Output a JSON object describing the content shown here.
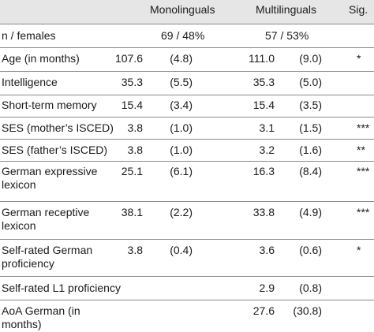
{
  "header": {
    "col_mono": "Monolinguals",
    "col_multi": "Multilinguals",
    "col_sig": "Sig."
  },
  "summary_row": {
    "label": "n / females",
    "mono": "69  /  48%",
    "multi": "57  /  53%"
  },
  "rows": [
    {
      "label": "Age (in months)",
      "mono_mean": "107.6",
      "mono_sd": "(4.8)",
      "multi_mean": "111.0",
      "multi_sd": "(9.0)",
      "sig": "*"
    },
    {
      "label": "Intelligence",
      "mono_mean": "35.3",
      "mono_sd": "(5.5)",
      "multi_mean": "35.3",
      "multi_sd": "(5.0)",
      "sig": ""
    },
    {
      "label": "Short-term memory",
      "mono_mean": "15.4",
      "mono_sd": "(3.4)",
      "multi_mean": "15.4",
      "multi_sd": "(3.5)",
      "sig": ""
    },
    {
      "label": "SES (mother’s ISCED)",
      "mono_mean": "3.8",
      "mono_sd": "(1.0)",
      "multi_mean": "3.1",
      "multi_sd": "(1.5)",
      "sig": "***"
    },
    {
      "label": "SES (father’s ISCED)",
      "mono_mean": "3.8",
      "mono_sd": "(1.0)",
      "multi_mean": "3.2",
      "multi_sd": "(1.6)",
      "sig": "**"
    },
    {
      "label": "German expressive lexicon",
      "mono_mean": "25.1",
      "mono_sd": "(6.1)",
      "multi_mean": "16.3",
      "multi_sd": "(8.4)",
      "sig": "***"
    },
    {
      "label": "German receptive lexicon",
      "mono_mean": "38.1",
      "mono_sd": "(2.2)",
      "multi_mean": "33.8",
      "multi_sd": "(4.9)",
      "sig": "***"
    },
    {
      "label": "Self-rated German proficiency",
      "mono_mean": "3.8",
      "mono_sd": "(0.4)",
      "multi_mean": "3.6",
      "multi_sd": "(0.6)",
      "sig": "*"
    },
    {
      "label": "Self-rated L1 proficiency",
      "mono_mean": "",
      "mono_sd": "",
      "multi_mean": "2.9",
      "multi_sd": "(0.8)",
      "sig": ""
    },
    {
      "label": "AoA German (in months)",
      "mono_mean": "",
      "mono_sd": "",
      "multi_mean": "27.6",
      "multi_sd": "(30.8)",
      "sig": ""
    }
  ]
}
